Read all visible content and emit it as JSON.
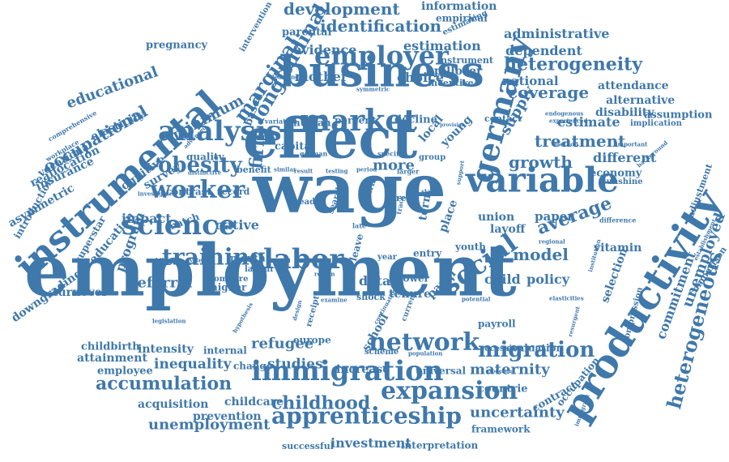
{
  "cloud": {
    "color": "#3f78ab",
    "words": [
      {
        "text": "employment"
      },
      {
        "text": "wage"
      },
      {
        "text": "effect"
      },
      {
        "text": "instrumental"
      },
      {
        "text": "business"
      },
      {
        "text": "productivity"
      },
      {
        "text": "germany"
      },
      {
        "text": "variable"
      },
      {
        "text": "immigration"
      },
      {
        "text": "labor"
      },
      {
        "text": "market"
      },
      {
        "text": "analysis"
      },
      {
        "text": "science"
      },
      {
        "text": "worker"
      },
      {
        "text": "social"
      },
      {
        "text": "network"
      },
      {
        "text": "expansion"
      },
      {
        "text": "apprenticeship"
      },
      {
        "text": "training"
      },
      {
        "text": "heterogeneous"
      },
      {
        "text": "employer"
      },
      {
        "text": "migration"
      },
      {
        "text": "obesity"
      },
      {
        "text": "accumulation"
      },
      {
        "text": "childhood"
      },
      {
        "text": "longitudinal"
      },
      {
        "text": "marginal"
      },
      {
        "text": "development"
      },
      {
        "text": "identification"
      },
      {
        "text": "heterogeneity"
      },
      {
        "text": "administrative"
      },
      {
        "text": "dependent"
      },
      {
        "text": "coverage"
      },
      {
        "text": "treatment"
      },
      {
        "text": "growth"
      },
      {
        "text": "average"
      },
      {
        "text": "model"
      },
      {
        "text": "unemployed"
      },
      {
        "text": "commitment"
      },
      {
        "text": "maternity"
      },
      {
        "text": "uncertainty"
      },
      {
        "text": "unemployment"
      },
      {
        "text": "investment"
      },
      {
        "text": "refugee"
      },
      {
        "text": "inequality"
      },
      {
        "text": "studies"
      },
      {
        "text": "firm"
      },
      {
        "text": "occupational"
      },
      {
        "text": "educational"
      },
      {
        "text": "minimum"
      },
      {
        "text": "estimation"
      },
      {
        "text": "evidence"
      },
      {
        "text": "mother"
      },
      {
        "text": "choice"
      },
      {
        "text": "estimate"
      },
      {
        "text": "supply"
      },
      {
        "text": "different"
      },
      {
        "text": "native"
      },
      {
        "text": "impact"
      },
      {
        "text": "referral"
      },
      {
        "text": "program"
      },
      {
        "text": "acquisition"
      },
      {
        "text": "prevention"
      },
      {
        "text": "childcare"
      },
      {
        "text": "attainment"
      },
      {
        "text": "intensity"
      },
      {
        "text": "childbirth"
      },
      {
        "text": "employee"
      },
      {
        "text": "paper"
      },
      {
        "text": "layoff"
      },
      {
        "text": "child"
      },
      {
        "text": "policy"
      },
      {
        "text": "union"
      },
      {
        "text": "vitamin"
      },
      {
        "text": "national"
      },
      {
        "text": "attendance"
      },
      {
        "text": "alternative"
      },
      {
        "text": "disability"
      },
      {
        "text": "assumption"
      },
      {
        "text": "information"
      },
      {
        "text": "empirical"
      },
      {
        "text": "parental"
      },
      {
        "text": "pregnancy"
      },
      {
        "text": "insurance"
      },
      {
        "text": "reallocation"
      },
      {
        "text": "elasticity"
      },
      {
        "text": "vocational"
      },
      {
        "text": "cognitive"
      },
      {
        "text": "education"
      },
      {
        "text": "survey"
      },
      {
        "text": "asymmetric"
      },
      {
        "text": "introduction"
      },
      {
        "text": "downgrading"
      },
      {
        "text": "turnover"
      },
      {
        "text": "superstar"
      },
      {
        "text": "school"
      },
      {
        "text": "more"
      },
      {
        "text": "data"
      },
      {
        "text": "tenure"
      },
      {
        "text": "lower"
      },
      {
        "text": "panel"
      },
      {
        "text": "entry"
      },
      {
        "text": "youth"
      },
      {
        "text": "term"
      },
      {
        "text": "place"
      },
      {
        "text": "local"
      },
      {
        "text": "young"
      },
      {
        "text": "decline"
      },
      {
        "text": "percent"
      },
      {
        "text": "human"
      },
      {
        "text": "based"
      },
      {
        "text": "capital"
      },
      {
        "text": "quality"
      },
      {
        "text": "benefit"
      },
      {
        "text": "contrast"
      },
      {
        "text": "record"
      },
      {
        "text": "match"
      },
      {
        "text": "month"
      },
      {
        "text": "higher"
      },
      {
        "text": "compare"
      },
      {
        "text": "labour"
      },
      {
        "text": "change"
      },
      {
        "text": "internal"
      },
      {
        "text": "europe"
      },
      {
        "text": "increase"
      },
      {
        "text": "universal"
      },
      {
        "text": "recession"
      },
      {
        "text": "evaluation"
      },
      {
        "text": "countrie"
      },
      {
        "text": "contract"
      },
      {
        "text": "occupation"
      },
      {
        "text": "selection"
      },
      {
        "text": "economy"
      },
      {
        "text": "contact"
      },
      {
        "text": "spillover"
      },
      {
        "text": "incentive"
      },
      {
        "text": "payroll"
      },
      {
        "text": "framework"
      },
      {
        "text": "interpretation"
      },
      {
        "text": "successful"
      },
      {
        "text": "implication"
      },
      {
        "text": "adjustment"
      },
      {
        "text": "comparison"
      },
      {
        "text": "compression"
      },
      {
        "text": "intervention"
      },
      {
        "text": "estimating"
      },
      {
        "text": "instrument"
      },
      {
        "text": "shock"
      },
      {
        "text": "care"
      },
      {
        "text": "leave"
      },
      {
        "text": "search"
      },
      {
        "text": "return"
      },
      {
        "text": "year"
      },
      {
        "text": "head"
      },
      {
        "text": "scheme"
      },
      {
        "text": "workplace"
      },
      {
        "text": "comprehensive"
      },
      {
        "text": "sunshine"
      },
      {
        "text": "mobility"
      },
      {
        "text": "system"
      },
      {
        "text": "advanced"
      },
      {
        "text": "learning"
      },
      {
        "text": "variation"
      },
      {
        "text": "german"
      },
      {
        "text": "distinctive"
      },
      {
        "text": "investigate"
      },
      {
        "text": "similar"
      },
      {
        "text": "result"
      },
      {
        "text": "testing"
      },
      {
        "text": "period"
      },
      {
        "text": "larger"
      },
      {
        "text": "group"
      },
      {
        "text": "specific"
      },
      {
        "text": "start"
      },
      {
        "text": "track"
      },
      {
        "text": "late"
      },
      {
        "text": "receipt"
      },
      {
        "text": "region"
      },
      {
        "text": "design"
      },
      {
        "text": "legislation"
      },
      {
        "text": "difference"
      },
      {
        "text": "regional"
      },
      {
        "text": "institution"
      },
      {
        "text": "background"
      },
      {
        "text": "endogenous"
      },
      {
        "text": "experienced"
      },
      {
        "text": "method"
      },
      {
        "text": "important"
      },
      {
        "text": "provision"
      },
      {
        "text": "exogenous"
      },
      {
        "text": "population"
      },
      {
        "text": "potential"
      },
      {
        "text": "resurgent"
      },
      {
        "text": "immigrant"
      },
      {
        "text": "elasticities"
      },
      {
        "text": "establishment"
      },
      {
        "text": "continuation"
      },
      {
        "text": "examine"
      },
      {
        "text": "current"
      },
      {
        "text": "hypothesis"
      },
      {
        "text": "symmetric"
      },
      {
        "text": "support"
      }
    ]
  }
}
